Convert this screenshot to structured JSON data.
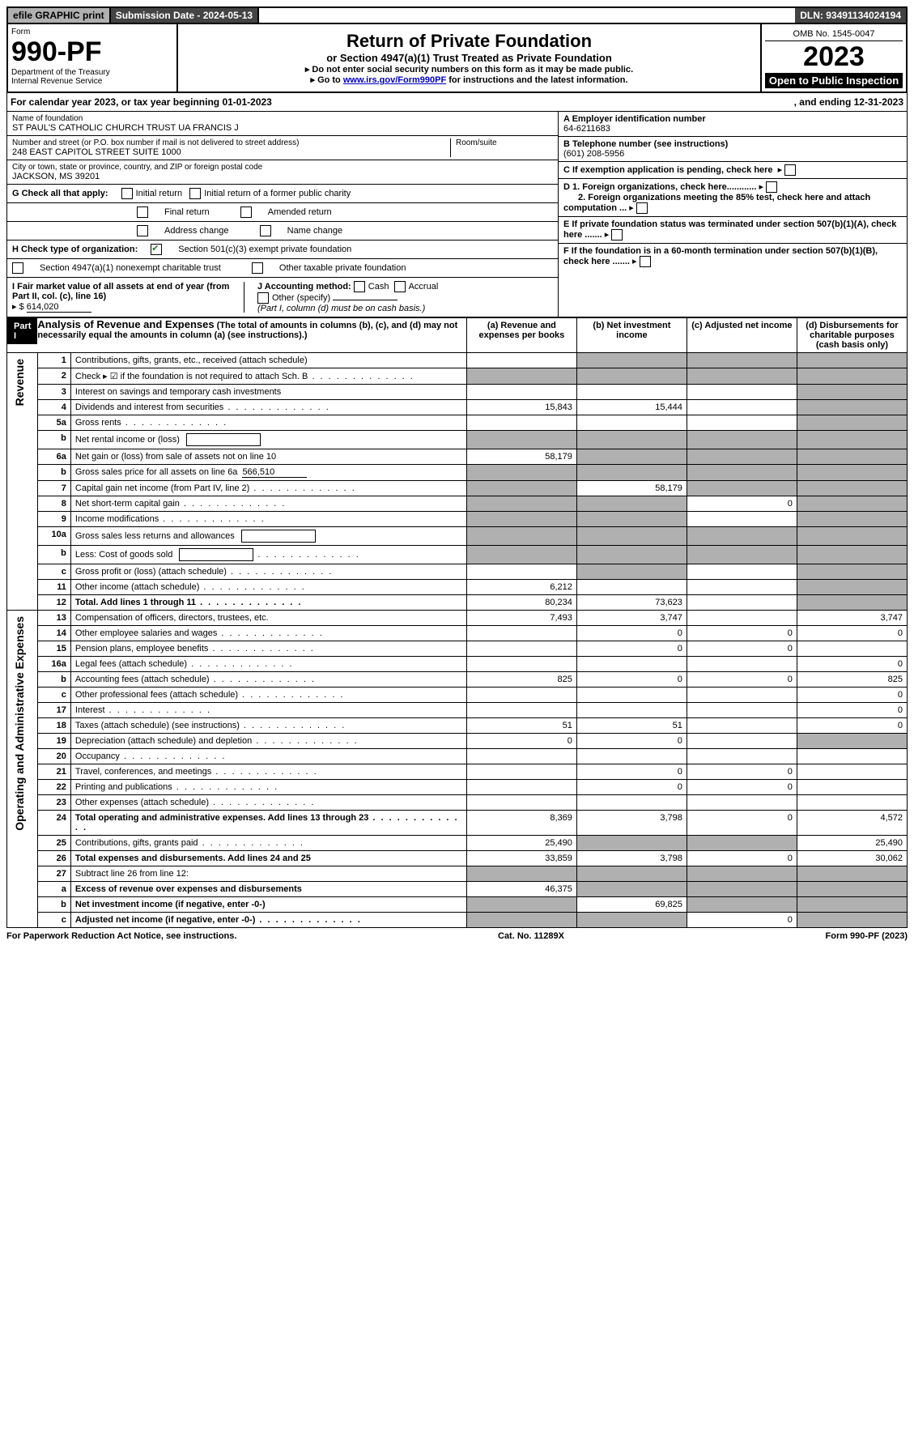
{
  "topbar": {
    "efile": "efile GRAPHIC print",
    "subdate_label": "Submission Date - 2024-05-13",
    "dln": "DLN: 93491134024194"
  },
  "header": {
    "form_label": "Form",
    "form_number": "990-PF",
    "dept": "Department of the Treasury",
    "irs": "Internal Revenue Service",
    "title": "Return of Private Foundation",
    "subtitle": "or Section 4947(a)(1) Trust Treated as Private Foundation",
    "instr1": "Do not enter social security numbers on this form as it may be made public.",
    "instr2_prefix": "Go to ",
    "instr2_link": "www.irs.gov/Form990PF",
    "instr2_suffix": " for instructions and the latest information.",
    "omb": "OMB No. 1545-0047",
    "year": "2023",
    "open": "Open to Public Inspection"
  },
  "calyear": {
    "prefix": "For calendar year 2023, or tax year beginning ",
    "begin": "01-01-2023",
    "mid": ", and ending ",
    "end": "12-31-2023"
  },
  "info": {
    "name_label": "Name of foundation",
    "name": "ST PAUL'S CATHOLIC CHURCH TRUST UA FRANCIS J",
    "addr_label": "Number and street (or P.O. box number if mail is not delivered to street address)",
    "addr": "248 EAST CAPITOL STREET SUITE 1000",
    "room_label": "Room/suite",
    "city_label": "City or town, state or province, country, and ZIP or foreign postal code",
    "city": "JACKSON, MS  39201",
    "A_label": "A Employer identification number",
    "A_val": "64-6211683",
    "B_label": "B Telephone number (see instructions)",
    "B_val": "(601) 208-5956",
    "C_label": "C If exemption application is pending, check here",
    "D1": "D 1. Foreign organizations, check here............",
    "D2": "2. Foreign organizations meeting the 85% test, check here and attach computation ...",
    "E": "E  If private foundation status was terminated under section 507(b)(1)(A), check here .......",
    "F": "F  If the foundation is in a 60-month termination under section 507(b)(1)(B), check here .......",
    "G_label": "G Check all that apply:",
    "G_opts": [
      "Initial return",
      "Initial return of a former public charity",
      "Final return",
      "Amended return",
      "Address change",
      "Name change"
    ],
    "H_label": "H Check type of organization:",
    "H_501c3": "Section 501(c)(3) exempt private foundation",
    "H_4947": "Section 4947(a)(1) nonexempt charitable trust",
    "H_other": "Other taxable private foundation",
    "I_label": "I Fair market value of all assets at end of year (from Part II, col. (c), line 16)",
    "I_val": "614,020",
    "J_label": "J Accounting method:",
    "J_opts": [
      "Cash",
      "Accrual"
    ],
    "J_other": "Other (specify)",
    "J_note": "(Part I, column (d) must be on cash basis.)"
  },
  "part1": {
    "badge": "Part I",
    "title": "Analysis of Revenue and Expenses",
    "title_note": "(The total of amounts in columns (b), (c), and (d) may not necessarily equal the amounts in column (a) (see instructions).)",
    "cols": {
      "a": "(a)  Revenue and expenses per books",
      "b": "(b)  Net investment income",
      "c": "(c)  Adjusted net income",
      "d": "(d)  Disbursements for charitable purposes (cash basis only)"
    }
  },
  "sections": {
    "revenue": "Revenue",
    "opadmin": "Operating and Administrative Expenses"
  },
  "rows": [
    {
      "n": "1",
      "desc": "Contributions, gifts, grants, etc., received (attach schedule)",
      "a": "",
      "b": "g",
      "c": "g",
      "d": "g"
    },
    {
      "n": "2",
      "desc": "Check ▸ ☑ if the foundation is not required to attach Sch. B",
      "dots": true,
      "a": "g",
      "b": "g",
      "c": "g",
      "d": "g",
      "bold_not": true
    },
    {
      "n": "3",
      "desc": "Interest on savings and temporary cash investments",
      "a": "",
      "b": "",
      "c": "",
      "d": "g"
    },
    {
      "n": "4",
      "desc": "Dividends and interest from securities",
      "dots": true,
      "a": "15,843",
      "b": "15,444",
      "c": "",
      "d": "g"
    },
    {
      "n": "5a",
      "desc": "Gross rents",
      "dots": true,
      "a": "",
      "b": "",
      "c": "",
      "d": "g"
    },
    {
      "n": "b",
      "desc": "Net rental income or (loss)",
      "box": true,
      "a": "g",
      "b": "g",
      "c": "g",
      "d": "g"
    },
    {
      "n": "6a",
      "desc": "Net gain or (loss) from sale of assets not on line 10",
      "a": "58,179",
      "b": "g",
      "c": "g",
      "d": "g"
    },
    {
      "n": "b",
      "desc": "Gross sales price for all assets on line 6a",
      "inline_val": "566,510",
      "a": "g",
      "b": "g",
      "c": "g",
      "d": "g"
    },
    {
      "n": "7",
      "desc": "Capital gain net income (from Part IV, line 2)",
      "dots": true,
      "a": "g",
      "b": "58,179",
      "c": "g",
      "d": "g"
    },
    {
      "n": "8",
      "desc": "Net short-term capital gain",
      "dots": true,
      "a": "g",
      "b": "g",
      "c": "0",
      "d": "g"
    },
    {
      "n": "9",
      "desc": "Income modifications",
      "dots": true,
      "a": "g",
      "b": "g",
      "c": "",
      "d": "g"
    },
    {
      "n": "10a",
      "desc": "Gross sales less returns and allowances",
      "box": true,
      "a": "g",
      "b": "g",
      "c": "g",
      "d": "g"
    },
    {
      "n": "b",
      "desc": "Less: Cost of goods sold",
      "dots": true,
      "box": true,
      "a": "g",
      "b": "g",
      "c": "g",
      "d": "g"
    },
    {
      "n": "c",
      "desc": "Gross profit or (loss) (attach schedule)",
      "dots": true,
      "a": "",
      "b": "g",
      "c": "",
      "d": "g"
    },
    {
      "n": "11",
      "desc": "Other income (attach schedule)",
      "dots": true,
      "a": "6,212",
      "b": "",
      "c": "",
      "d": "g"
    },
    {
      "n": "12",
      "desc": "Total. Add lines 1 through 11",
      "dots": true,
      "bold": true,
      "a": "80,234",
      "b": "73,623",
      "c": "",
      "d": "g"
    },
    {
      "n": "13",
      "desc": "Compensation of officers, directors, trustees, etc.",
      "a": "7,493",
      "b": "3,747",
      "c": "",
      "d": "3,747",
      "sec": "op"
    },
    {
      "n": "14",
      "desc": "Other employee salaries and wages",
      "dots": true,
      "a": "",
      "b": "0",
      "c": "0",
      "d": "0",
      "sec": "op"
    },
    {
      "n": "15",
      "desc": "Pension plans, employee benefits",
      "dots": true,
      "a": "",
      "b": "0",
      "c": "0",
      "d": "",
      "sec": "op"
    },
    {
      "n": "16a",
      "desc": "Legal fees (attach schedule)",
      "dots": true,
      "a": "",
      "b": "",
      "c": "",
      "d": "0",
      "sec": "op"
    },
    {
      "n": "b",
      "desc": "Accounting fees (attach schedule)",
      "dots": true,
      "a": "825",
      "b": "0",
      "c": "0",
      "d": "825",
      "sec": "op"
    },
    {
      "n": "c",
      "desc": "Other professional fees (attach schedule)",
      "dots": true,
      "a": "",
      "b": "",
      "c": "",
      "d": "0",
      "sec": "op"
    },
    {
      "n": "17",
      "desc": "Interest",
      "dots": true,
      "a": "",
      "b": "",
      "c": "",
      "d": "0",
      "sec": "op"
    },
    {
      "n": "18",
      "desc": "Taxes (attach schedule) (see instructions)",
      "dots": true,
      "a": "51",
      "b": "51",
      "c": "",
      "d": "0",
      "sec": "op"
    },
    {
      "n": "19",
      "desc": "Depreciation (attach schedule) and depletion",
      "dots": true,
      "a": "0",
      "b": "0",
      "c": "",
      "d": "g",
      "sec": "op"
    },
    {
      "n": "20",
      "desc": "Occupancy",
      "dots": true,
      "a": "",
      "b": "",
      "c": "",
      "d": "",
      "sec": "op"
    },
    {
      "n": "21",
      "desc": "Travel, conferences, and meetings",
      "dots": true,
      "a": "",
      "b": "0",
      "c": "0",
      "d": "",
      "sec": "op"
    },
    {
      "n": "22",
      "desc": "Printing and publications",
      "dots": true,
      "a": "",
      "b": "0",
      "c": "0",
      "d": "",
      "sec": "op"
    },
    {
      "n": "23",
      "desc": "Other expenses (attach schedule)",
      "dots": true,
      "a": "",
      "b": "",
      "c": "",
      "d": "",
      "sec": "op"
    },
    {
      "n": "24",
      "desc": "Total operating and administrative expenses. Add lines 13 through 23",
      "dots": true,
      "bold": true,
      "a": "8,369",
      "b": "3,798",
      "c": "0",
      "d": "4,572",
      "sec": "op"
    },
    {
      "n": "25",
      "desc": "Contributions, gifts, grants paid",
      "dots": true,
      "a": "25,490",
      "b": "g",
      "c": "g",
      "d": "25,490",
      "sec": "op"
    },
    {
      "n": "26",
      "desc": "Total expenses and disbursements. Add lines 24 and 25",
      "bold": true,
      "a": "33,859",
      "b": "3,798",
      "c": "0",
      "d": "30,062",
      "sec": "op"
    },
    {
      "n": "27",
      "desc": "Subtract line 26 from line 12:",
      "a": "g",
      "b": "g",
      "c": "g",
      "d": "g",
      "sec": "op"
    },
    {
      "n": "a",
      "desc": "Excess of revenue over expenses and disbursements",
      "bold": true,
      "a": "46,375",
      "b": "g",
      "c": "g",
      "d": "g",
      "sec": "op"
    },
    {
      "n": "b",
      "desc": "Net investment income (if negative, enter -0-)",
      "bold": true,
      "a": "g",
      "b": "69,825",
      "c": "g",
      "d": "g",
      "sec": "op"
    },
    {
      "n": "c",
      "desc": "Adjusted net income (if negative, enter -0-)",
      "dots": true,
      "bold": true,
      "a": "g",
      "b": "g",
      "c": "0",
      "d": "g",
      "sec": "op"
    }
  ],
  "footer": {
    "left": "For Paperwork Reduction Act Notice, see instructions.",
    "mid": "Cat. No. 11289X",
    "right": "Form 990-PF (2023)"
  },
  "colors": {
    "grey_fill": "#b0b0b0",
    "dark_bar": "#444444",
    "black": "#000000",
    "link": "#0000cc",
    "check_green": "#3a7a3a"
  }
}
